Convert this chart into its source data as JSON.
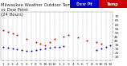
{
  "title": "Milwaukee Weather Outdoor Temperature\nvs Dew Point\n(24 Hours)",
  "title_fontsize": 3.8,
  "title_color": "#222222",
  "background_color": "#ffffff",
  "grid_color": "#888888",
  "xlim": [
    -0.5,
    23.5
  ],
  "ylim": [
    15,
    75
  ],
  "yticks": [
    20,
    25,
    30,
    35,
    40,
    45,
    50,
    55,
    60,
    65,
    70
  ],
  "ytick_labels": [
    "20",
    "25",
    "30",
    "35",
    "40",
    "45",
    "50",
    "55",
    "60",
    "65",
    "70"
  ],
  "xticks": [
    0,
    1,
    2,
    3,
    4,
    5,
    6,
    7,
    8,
    9,
    10,
    11,
    12,
    13,
    14,
    15,
    16,
    17,
    18,
    19,
    20,
    21,
    22,
    23
  ],
  "xtick_labels": [
    "1",
    "2",
    "3",
    "4",
    "5",
    "6",
    "7",
    "8",
    "9",
    "10",
    "11",
    "12",
    "1",
    "2",
    "3",
    "4",
    "5",
    "6",
    "7",
    "8",
    "9",
    "10",
    "11",
    "12"
  ],
  "temp_x": [
    0,
    1,
    2,
    3,
    5,
    7,
    8,
    9,
    10,
    11,
    13,
    14,
    16,
    18,
    20,
    21
  ],
  "temp_y": [
    52,
    50,
    48,
    46,
    42,
    38,
    36,
    34,
    38,
    42,
    44,
    46,
    43,
    40,
    38,
    36
  ],
  "dew_x": [
    0,
    1,
    2,
    3,
    4,
    5,
    6,
    7,
    8,
    9,
    10,
    11,
    12,
    13,
    20,
    21,
    22,
    23
  ],
  "dew_y": [
    32,
    31,
    30,
    29,
    28,
    27,
    27,
    28,
    29,
    30,
    31,
    32,
    32,
    33,
    28,
    30,
    32,
    34
  ],
  "temp_color": "#cc0000",
  "dew_color": "#0000cc",
  "legend_temp_label": "Temp",
  "legend_dew_label": "Dew Pt",
  "legend_bar_color_temp": "#cc0000",
  "legend_bar_color_dew": "#0000cc",
  "vgrid_positions": [
    0,
    1,
    2,
    3,
    4,
    5,
    6,
    7,
    8,
    9,
    10,
    11,
    12,
    13,
    14,
    15,
    16,
    17,
    18,
    19,
    20,
    21,
    22,
    23
  ],
  "tick_fontsize": 3.2,
  "legend_fontsize": 3.5,
  "dot_size": 2.0
}
